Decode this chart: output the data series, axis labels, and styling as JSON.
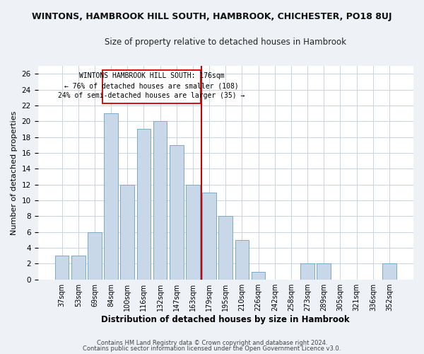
{
  "title": "WINTONS, HAMBROOK HILL SOUTH, HAMBROOK, CHICHESTER, PO18 8UJ",
  "subtitle": "Size of property relative to detached houses in Hambrook",
  "xlabel": "Distribution of detached houses by size in Hambrook",
  "ylabel": "Number of detached properties",
  "bar_labels": [
    "37sqm",
    "53sqm",
    "69sqm",
    "84sqm",
    "100sqm",
    "116sqm",
    "132sqm",
    "147sqm",
    "163sqm",
    "179sqm",
    "195sqm",
    "210sqm",
    "226sqm",
    "242sqm",
    "258sqm",
    "273sqm",
    "289sqm",
    "305sqm",
    "321sqm",
    "336sqm",
    "352sqm"
  ],
  "bar_values": [
    3,
    3,
    6,
    21,
    12,
    19,
    20,
    17,
    12,
    11,
    8,
    5,
    1,
    0,
    0,
    2,
    2,
    0,
    0,
    0,
    2
  ],
  "bar_color": "#c8d8e8",
  "bar_edge_color": "#7aaac8",
  "marker_line_color": "#cc0000",
  "annotation_line1": "WINTONS HAMBROOK HILL SOUTH: 176sqm",
  "annotation_line2": "← 76% of detached houses are smaller (108)",
  "annotation_line3": "24% of semi-detached houses are larger (35) →",
  "ylim": [
    0,
    27
  ],
  "yticks": [
    0,
    2,
    4,
    6,
    8,
    10,
    12,
    14,
    16,
    18,
    20,
    22,
    24,
    26
  ],
  "footer1": "Contains HM Land Registry data © Crown copyright and database right 2024.",
  "footer2": "Contains public sector information licensed under the Open Government Licence v3.0.",
  "bg_color": "#eef2f6",
  "plot_bg_color": "#ffffff",
  "grid_color": "#c8d4e0"
}
